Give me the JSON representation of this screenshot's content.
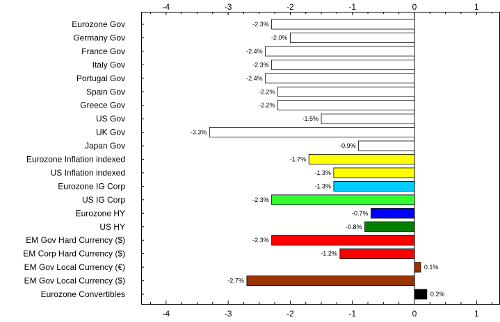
{
  "chart_data": {
    "type": "bar",
    "orientation": "horizontal",
    "categories": [
      "Eurozone Gov",
      "Germany Gov",
      "France Gov",
      "Italy Gov",
      "Portugal Gov",
      "Spain Gov",
      "Greece Gov",
      "US Gov",
      "UK Gov",
      "Japan Gov",
      "Eurozone Inflation indexed",
      "US Inflation indexed",
      "Eurozone IG Corp",
      "US IG Corp",
      "Eurozone HY",
      "US HY",
      "EM Gov Hard Currency ($)",
      "EM Corp Hard Currency ($)",
      "EM Gov Local Currency (€)",
      "EM Gov Local Currency ($)",
      "Eurozone Convertibles"
    ],
    "values": [
      -2.3,
      -2.0,
      -2.4,
      -2.3,
      -2.4,
      -2.2,
      -2.2,
      -1.5,
      -3.3,
      -0.9,
      -1.7,
      -1.3,
      -1.3,
      -2.3,
      -0.7,
      -0.8,
      -2.3,
      -1.2,
      0.1,
      -2.7,
      0.2
    ],
    "value_labels": [
      "-2.3%",
      "-2.0%",
      "-2.4%",
      "-2.3%",
      "-2.4%",
      "-2.2%",
      "-2.2%",
      "-1.5%",
      "-3.3%",
      "-0.9%",
      "-1.7%",
      "-1.3%",
      "-1.3%",
      "-2.3%",
      "-0.7%",
      "-0.8%",
      "-2.3%",
      "-1.2%",
      "0.1%",
      "-2.7%",
      "0.2%"
    ],
    "colors": [
      "#ffffff",
      "#ffffff",
      "#ffffff",
      "#ffffff",
      "#ffffff",
      "#ffffff",
      "#ffffff",
      "#ffffff",
      "#ffffff",
      "#ffffff",
      "#ffff00",
      "#ffff00",
      "#00ccff",
      "#33ff33",
      "#0000ff",
      "#008000",
      "#ff0000",
      "#ff0000",
      "#993300",
      "#993300",
      "#000000"
    ],
    "xlim": [
      -4.4,
      1.35
    ],
    "xticks": [
      -4,
      -3,
      -2,
      -1,
      0,
      1
    ],
    "tick_labels": [
      "-4",
      "-3",
      "-2",
      "-1",
      "0",
      "1"
    ],
    "title": "",
    "xlabel": "",
    "ylabel": "",
    "grid": false,
    "legend": false
  }
}
